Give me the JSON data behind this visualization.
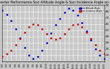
{
  "title": "Solar PV/Inverter Performance Sun Altitude Angle & Sun Incidence Angle on PV Panels",
  "legend": [
    "Sun Altitude Angle",
    "Sun Incidence Angle"
  ],
  "legend_colors": [
    "#0000cc",
    "#cc0000"
  ],
  "background_color": "#c8c8c8",
  "plot_bg_color": "#c8c8c8",
  "grid_color": "#ffffff",
  "ylim": [
    0,
    90
  ],
  "xlim": [
    0,
    23
  ],
  "title_fontsize": 3.5,
  "yticks": [
    10,
    20,
    30,
    40,
    50,
    60,
    70,
    80,
    90
  ],
  "xtick_labels": [
    "0:00",
    "1:00",
    "2:00",
    "3:00",
    "4:00",
    "5:00",
    "6:00",
    "7:00",
    "8:00",
    "9:00",
    "10:00",
    "11:00",
    "12:00",
    "13:00",
    "14:00",
    "15:00",
    "16:00",
    "17:00",
    "18:00",
    "19:00",
    "20:00",
    "21:00",
    "22:00",
    "23:00"
  ],
  "xtick_positions": [
    0,
    1,
    2,
    3,
    4,
    5,
    6,
    7,
    8,
    9,
    10,
    11,
    12,
    13,
    14,
    15,
    16,
    17,
    18,
    19,
    20,
    21,
    22,
    23
  ],
  "altitude_x": [
    0,
    1,
    2,
    3,
    4,
    5,
    6,
    7,
    8,
    9,
    10,
    11,
    12,
    13,
    14,
    15,
    16,
    17,
    18,
    19,
    20,
    21,
    22,
    23
  ],
  "altitude_y": [
    82,
    75,
    65,
    52,
    38,
    22,
    10,
    4,
    8,
    18,
    30,
    45,
    58,
    68,
    78,
    85,
    82,
    74,
    62,
    48,
    34,
    20,
    10,
    4
  ],
  "incidence_x": [
    0,
    1,
    2,
    3,
    4,
    5,
    6,
    7,
    8,
    9,
    10,
    11,
    12,
    13,
    14,
    15,
    16,
    17,
    18,
    19,
    20,
    21,
    22,
    23
  ],
  "incidence_y": [
    8,
    12,
    18,
    26,
    36,
    46,
    55,
    60,
    58,
    52,
    44,
    38,
    35,
    38,
    44,
    52,
    58,
    60,
    55,
    46,
    36,
    26,
    18,
    12
  ],
  "marker_size": 2.0
}
